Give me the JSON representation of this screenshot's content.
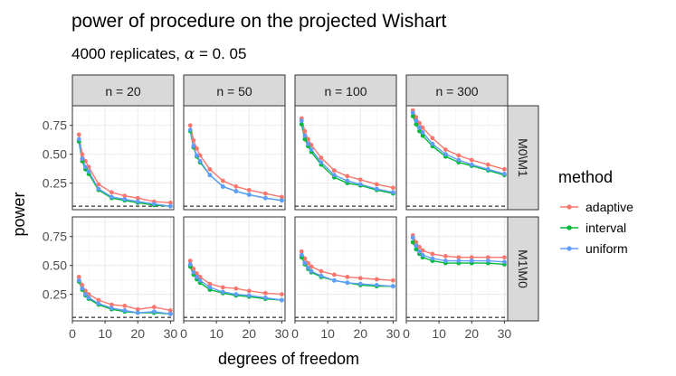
{
  "chart_data": {
    "type": "line",
    "title": "power of procedure on the projected Wishart",
    "subtitle_prefix": "4000 replicates, ",
    "subtitle_alpha": "α",
    "subtitle_suffix": " = 0. 05",
    "xlabel": "degrees of freedom",
    "ylabel": "power",
    "xlim": [
      0,
      31
    ],
    "ylim": [
      0.02,
      0.92
    ],
    "x_ticks": [
      0,
      10,
      20,
      30
    ],
    "x_tick_labels": [
      "0",
      "10",
      "20",
      "30"
    ],
    "y_ticks": [
      0.25,
      0.5,
      0.75
    ],
    "y_tick_labels": [
      "0.25",
      "0.50",
      "0.75"
    ],
    "alpha_level": 0.05,
    "columns": [
      "n = 20",
      "n = 50",
      "n = 100",
      "n = 300"
    ],
    "rows": [
      "M0\\M1",
      "M1\\M0"
    ],
    "legend": {
      "title": "method",
      "entries": [
        "adaptive",
        "interval",
        "uniform"
      ],
      "position": "right"
    },
    "colors": {
      "adaptive": "#F8766D",
      "interval": "#00BA38",
      "uniform": "#619CFF"
    },
    "x": [
      2,
      3,
      4,
      5,
      8,
      12,
      16,
      20,
      25,
      30
    ],
    "panels": [
      {
        "row": "M0\\M1",
        "col": "n = 20",
        "series": [
          {
            "name": "adaptive",
            "values": [
              0.67,
              0.5,
              0.44,
              0.39,
              0.24,
              0.17,
              0.14,
              0.12,
              0.09,
              0.08
            ]
          },
          {
            "name": "interval",
            "values": [
              0.61,
              0.44,
              0.37,
              0.33,
              0.19,
              0.12,
              0.1,
              0.08,
              0.06,
              0.05
            ]
          },
          {
            "name": "uniform",
            "values": [
              0.63,
              0.46,
              0.39,
              0.35,
              0.2,
              0.13,
              0.11,
              0.09,
              0.07,
              0.05
            ]
          }
        ]
      },
      {
        "row": "M0\\M1",
        "col": "n = 50",
        "series": [
          {
            "name": "adaptive",
            "values": [
              0.75,
              0.62,
              0.55,
              0.49,
              0.37,
              0.27,
              0.22,
              0.19,
              0.16,
              0.13
            ]
          },
          {
            "name": "interval",
            "values": [
              0.7,
              0.56,
              0.48,
              0.43,
              0.32,
              0.22,
              0.18,
              0.15,
              0.12,
              0.1
            ]
          },
          {
            "name": "uniform",
            "values": [
              0.71,
              0.57,
              0.49,
              0.44,
              0.32,
              0.22,
              0.18,
              0.15,
              0.12,
              0.1
            ]
          }
        ]
      },
      {
        "row": "M0\\M1",
        "col": "n = 100",
        "series": [
          {
            "name": "adaptive",
            "values": [
              0.81,
              0.7,
              0.63,
              0.58,
              0.47,
              0.36,
              0.31,
              0.28,
              0.24,
              0.21
            ]
          },
          {
            "name": "interval",
            "values": [
              0.76,
              0.63,
              0.57,
              0.52,
              0.41,
              0.3,
              0.25,
              0.23,
              0.19,
              0.16
            ]
          },
          {
            "name": "uniform",
            "values": [
              0.79,
              0.66,
              0.59,
              0.54,
              0.43,
              0.32,
              0.27,
              0.24,
              0.2,
              0.17
            ]
          }
        ]
      },
      {
        "row": "M0\\M1",
        "col": "n = 300",
        "series": [
          {
            "name": "adaptive",
            "values": [
              0.88,
              0.82,
              0.77,
              0.73,
              0.64,
              0.54,
              0.49,
              0.45,
              0.41,
              0.37
            ]
          },
          {
            "name": "interval",
            "values": [
              0.83,
              0.76,
              0.7,
              0.66,
              0.57,
              0.48,
              0.43,
              0.4,
              0.36,
              0.32
            ]
          },
          {
            "name": "uniform",
            "values": [
              0.86,
              0.79,
              0.73,
              0.69,
              0.59,
              0.5,
              0.45,
              0.41,
              0.37,
              0.33
            ]
          }
        ]
      },
      {
        "row": "M1\\M0",
        "col": "n = 20",
        "series": [
          {
            "name": "adaptive",
            "values": [
              0.4,
              0.33,
              0.28,
              0.25,
              0.2,
              0.16,
              0.15,
              0.12,
              0.14,
              0.11
            ]
          },
          {
            "name": "interval",
            "values": [
              0.36,
              0.29,
              0.24,
              0.21,
              0.16,
              0.12,
              0.1,
              0.09,
              0.09,
              0.08
            ]
          },
          {
            "name": "uniform",
            "values": [
              0.37,
              0.3,
              0.25,
              0.22,
              0.17,
              0.13,
              0.11,
              0.09,
              0.1,
              0.08
            ]
          }
        ]
      },
      {
        "row": "M1\\M0",
        "col": "n = 50",
        "series": [
          {
            "name": "adaptive",
            "values": [
              0.54,
              0.47,
              0.43,
              0.4,
              0.34,
              0.31,
              0.3,
              0.28,
              0.26,
              0.25
            ]
          },
          {
            "name": "interval",
            "values": [
              0.49,
              0.42,
              0.38,
              0.35,
              0.29,
              0.26,
              0.24,
              0.23,
              0.21,
              0.2
            ]
          },
          {
            "name": "uniform",
            "values": [
              0.51,
              0.44,
              0.4,
              0.37,
              0.31,
              0.27,
              0.25,
              0.24,
              0.22,
              0.2
            ]
          }
        ]
      },
      {
        "row": "M1\\M0",
        "col": "n = 100",
        "series": [
          {
            "name": "adaptive",
            "values": [
              0.62,
              0.56,
              0.52,
              0.49,
              0.45,
              0.42,
              0.4,
              0.39,
              0.38,
              0.37
            ]
          },
          {
            "name": "interval",
            "values": [
              0.57,
              0.51,
              0.47,
              0.44,
              0.4,
              0.37,
              0.35,
              0.33,
              0.32,
              0.32
            ]
          },
          {
            "name": "uniform",
            "values": [
              0.59,
              0.52,
              0.48,
              0.45,
              0.41,
              0.37,
              0.35,
              0.34,
              0.33,
              0.32
            ]
          }
        ]
      },
      {
        "row": "M1\\M0",
        "col": "n = 300",
        "series": [
          {
            "name": "adaptive",
            "values": [
              0.76,
              0.7,
              0.66,
              0.63,
              0.6,
              0.58,
              0.57,
              0.57,
              0.57,
              0.57
            ]
          },
          {
            "name": "interval",
            "values": [
              0.7,
              0.64,
              0.6,
              0.57,
              0.54,
              0.52,
              0.52,
              0.52,
              0.52,
              0.51
            ]
          },
          {
            "name": "uniform",
            "values": [
              0.74,
              0.67,
              0.62,
              0.59,
              0.56,
              0.54,
              0.54,
              0.54,
              0.54,
              0.53
            ]
          }
        ]
      }
    ]
  }
}
